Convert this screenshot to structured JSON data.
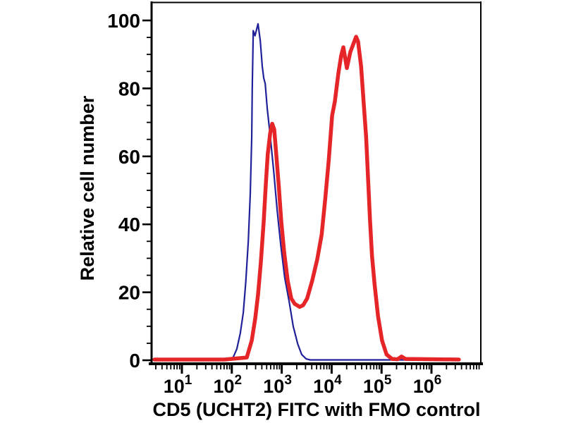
{
  "figure": {
    "background_color": "#ffffff",
    "axis_color": "#000000",
    "text_color": "#000000"
  },
  "chart_data": {
    "type": "line",
    "title": "",
    "xlabel": "CD5 (UCHT2) FITC with FMO control",
    "ylabel": "Relative cell number",
    "x_scale": "log",
    "x_tick_base": "10",
    "x_tick_exponents": [
      1,
      2,
      3,
      4,
      5,
      6
    ],
    "xlim_log": [
      0.45,
      7.0
    ],
    "y_ticks": [
      0,
      20,
      40,
      60,
      80,
      100
    ],
    "y_minor_step": 5,
    "ylim": [
      0,
      104
    ],
    "grid": false,
    "legend": "none",
    "series": [
      {
        "name": "FMO control",
        "color": "#20209a",
        "stroke_width": 2.2,
        "points": [
          [
            0.45,
            0.2
          ],
          [
            1.9,
            0.3
          ],
          [
            2.02,
            0.6
          ],
          [
            2.1,
            3.3
          ],
          [
            2.17,
            7.9
          ],
          [
            2.23,
            14
          ],
          [
            2.28,
            23
          ],
          [
            2.33,
            35
          ],
          [
            2.37,
            49
          ],
          [
            2.4,
            66
          ],
          [
            2.41,
            80
          ],
          [
            2.425,
            93
          ],
          [
            2.43,
            97
          ],
          [
            2.465,
            95.5
          ],
          [
            2.525,
            99
          ],
          [
            2.57,
            94
          ],
          [
            2.61,
            86.5
          ],
          [
            2.64,
            83
          ],
          [
            2.67,
            81.4
          ],
          [
            2.71,
            74
          ],
          [
            2.77,
            66
          ],
          [
            2.84,
            55.5
          ],
          [
            2.91,
            44
          ],
          [
            2.98,
            34
          ],
          [
            3.06,
            24.4
          ],
          [
            3.15,
            17.2
          ],
          [
            3.23,
            10
          ],
          [
            3.32,
            4.8
          ],
          [
            3.4,
            1.7
          ],
          [
            3.49,
            0.4
          ],
          [
            3.57,
            0.1
          ],
          [
            6.55,
            0.1
          ]
        ]
      },
      {
        "name": "CD5 (UCHT2) FITC",
        "color": "#e52528",
        "stroke_width": 5.5,
        "points": [
          [
            0.45,
            0.2
          ],
          [
            1.85,
            0.2
          ],
          [
            2.3,
            0.8
          ],
          [
            2.4,
            5.8
          ],
          [
            2.47,
            12.4
          ],
          [
            2.525,
            19.3
          ],
          [
            2.58,
            28.6
          ],
          [
            2.64,
            41
          ],
          [
            2.68,
            51.3
          ],
          [
            2.72,
            60.7
          ],
          [
            2.77,
            66.9
          ],
          [
            2.81,
            69.6
          ],
          [
            2.85,
            67.9
          ],
          [
            2.89,
            60.7
          ],
          [
            2.94,
            51.3
          ],
          [
            2.99,
            41
          ],
          [
            3.05,
            31.7
          ],
          [
            3.12,
            23.4
          ],
          [
            3.19,
            18.2
          ],
          [
            3.26,
            16.6
          ],
          [
            3.36,
            15.7
          ],
          [
            3.43,
            16.2
          ],
          [
            3.51,
            18.2
          ],
          [
            3.61,
            23.4
          ],
          [
            3.71,
            29.6
          ],
          [
            3.8,
            36.9
          ],
          [
            3.87,
            47.2
          ],
          [
            3.94,
            58.6
          ],
          [
            4.01,
            72
          ],
          [
            4.065,
            76.2
          ],
          [
            4.136,
            84.5
          ],
          [
            4.19,
            89.6
          ],
          [
            4.234,
            92.1
          ],
          [
            4.305,
            86
          ],
          [
            4.375,
            90.7
          ],
          [
            4.49,
            95.2
          ],
          [
            4.53,
            93.8
          ],
          [
            4.59,
            86.5
          ],
          [
            4.64,
            76.2
          ],
          [
            4.69,
            65.8
          ],
          [
            4.73,
            53.4
          ],
          [
            4.77,
            41
          ],
          [
            4.81,
            30.6
          ],
          [
            4.86,
            22.4
          ],
          [
            4.93,
            13
          ],
          [
            5.01,
            5.8
          ],
          [
            5.1,
            1.7
          ],
          [
            5.21,
            0.4
          ],
          [
            5.32,
            0.3
          ],
          [
            5.4,
            1.1
          ],
          [
            5.48,
            0.4
          ],
          [
            6.55,
            0.2
          ]
        ]
      }
    ]
  }
}
